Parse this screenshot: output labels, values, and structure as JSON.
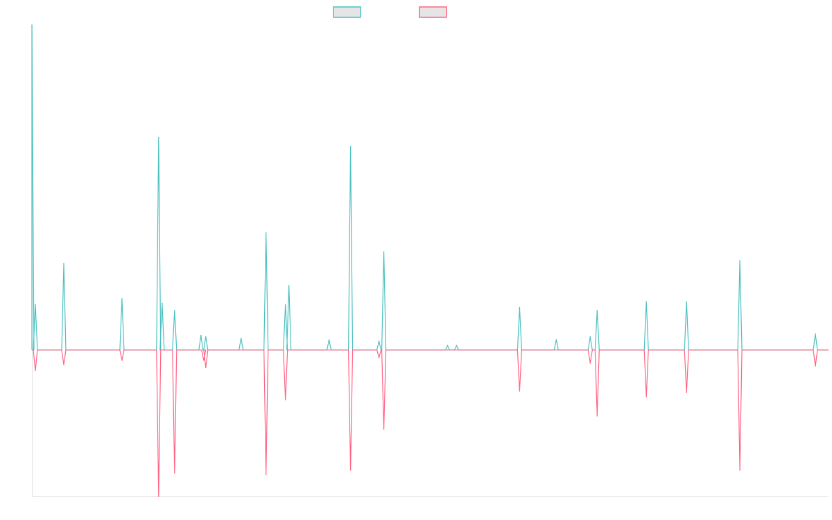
{
  "chart_data": {
    "type": "line",
    "title": "",
    "xlabel": "",
    "ylabel": "",
    "xlim": [
      0,
      1150
    ],
    "ylim": [
      -100,
      222
    ],
    "grid": false,
    "legend_position": "top-center",
    "series": [
      {
        "name": "",
        "color": "#4bc0c0",
        "x": [
          0,
          5,
          46,
          130,
          183,
          188,
          206,
          244,
          251,
          302,
          338,
          366,
          371,
          429,
          460,
          501,
          508,
          600,
          613,
          704,
          757,
          806,
          816,
          887,
          945,
          1022,
          1131
        ],
        "values": [
          222,
          31,
          59,
          35,
          145,
          32,
          27,
          10,
          9,
          8,
          80,
          31,
          44,
          7,
          139,
          6,
          67,
          3,
          3,
          29,
          7,
          9,
          27,
          33,
          33,
          61,
          11
        ]
      },
      {
        "name": "",
        "color": "#ff6384",
        "x": [
          5,
          46,
          130,
          183,
          206,
          248,
          251,
          338,
          366,
          460,
          501,
          508,
          704,
          806,
          816,
          887,
          945,
          1022,
          1131
        ],
        "values": [
          -14,
          -10,
          -7,
          -100,
          -84,
          -7,
          -12,
          -85,
          -34,
          -82,
          -5,
          -54,
          -28,
          -9,
          -45,
          -32,
          -29,
          -82,
          -11
        ]
      }
    ]
  }
}
